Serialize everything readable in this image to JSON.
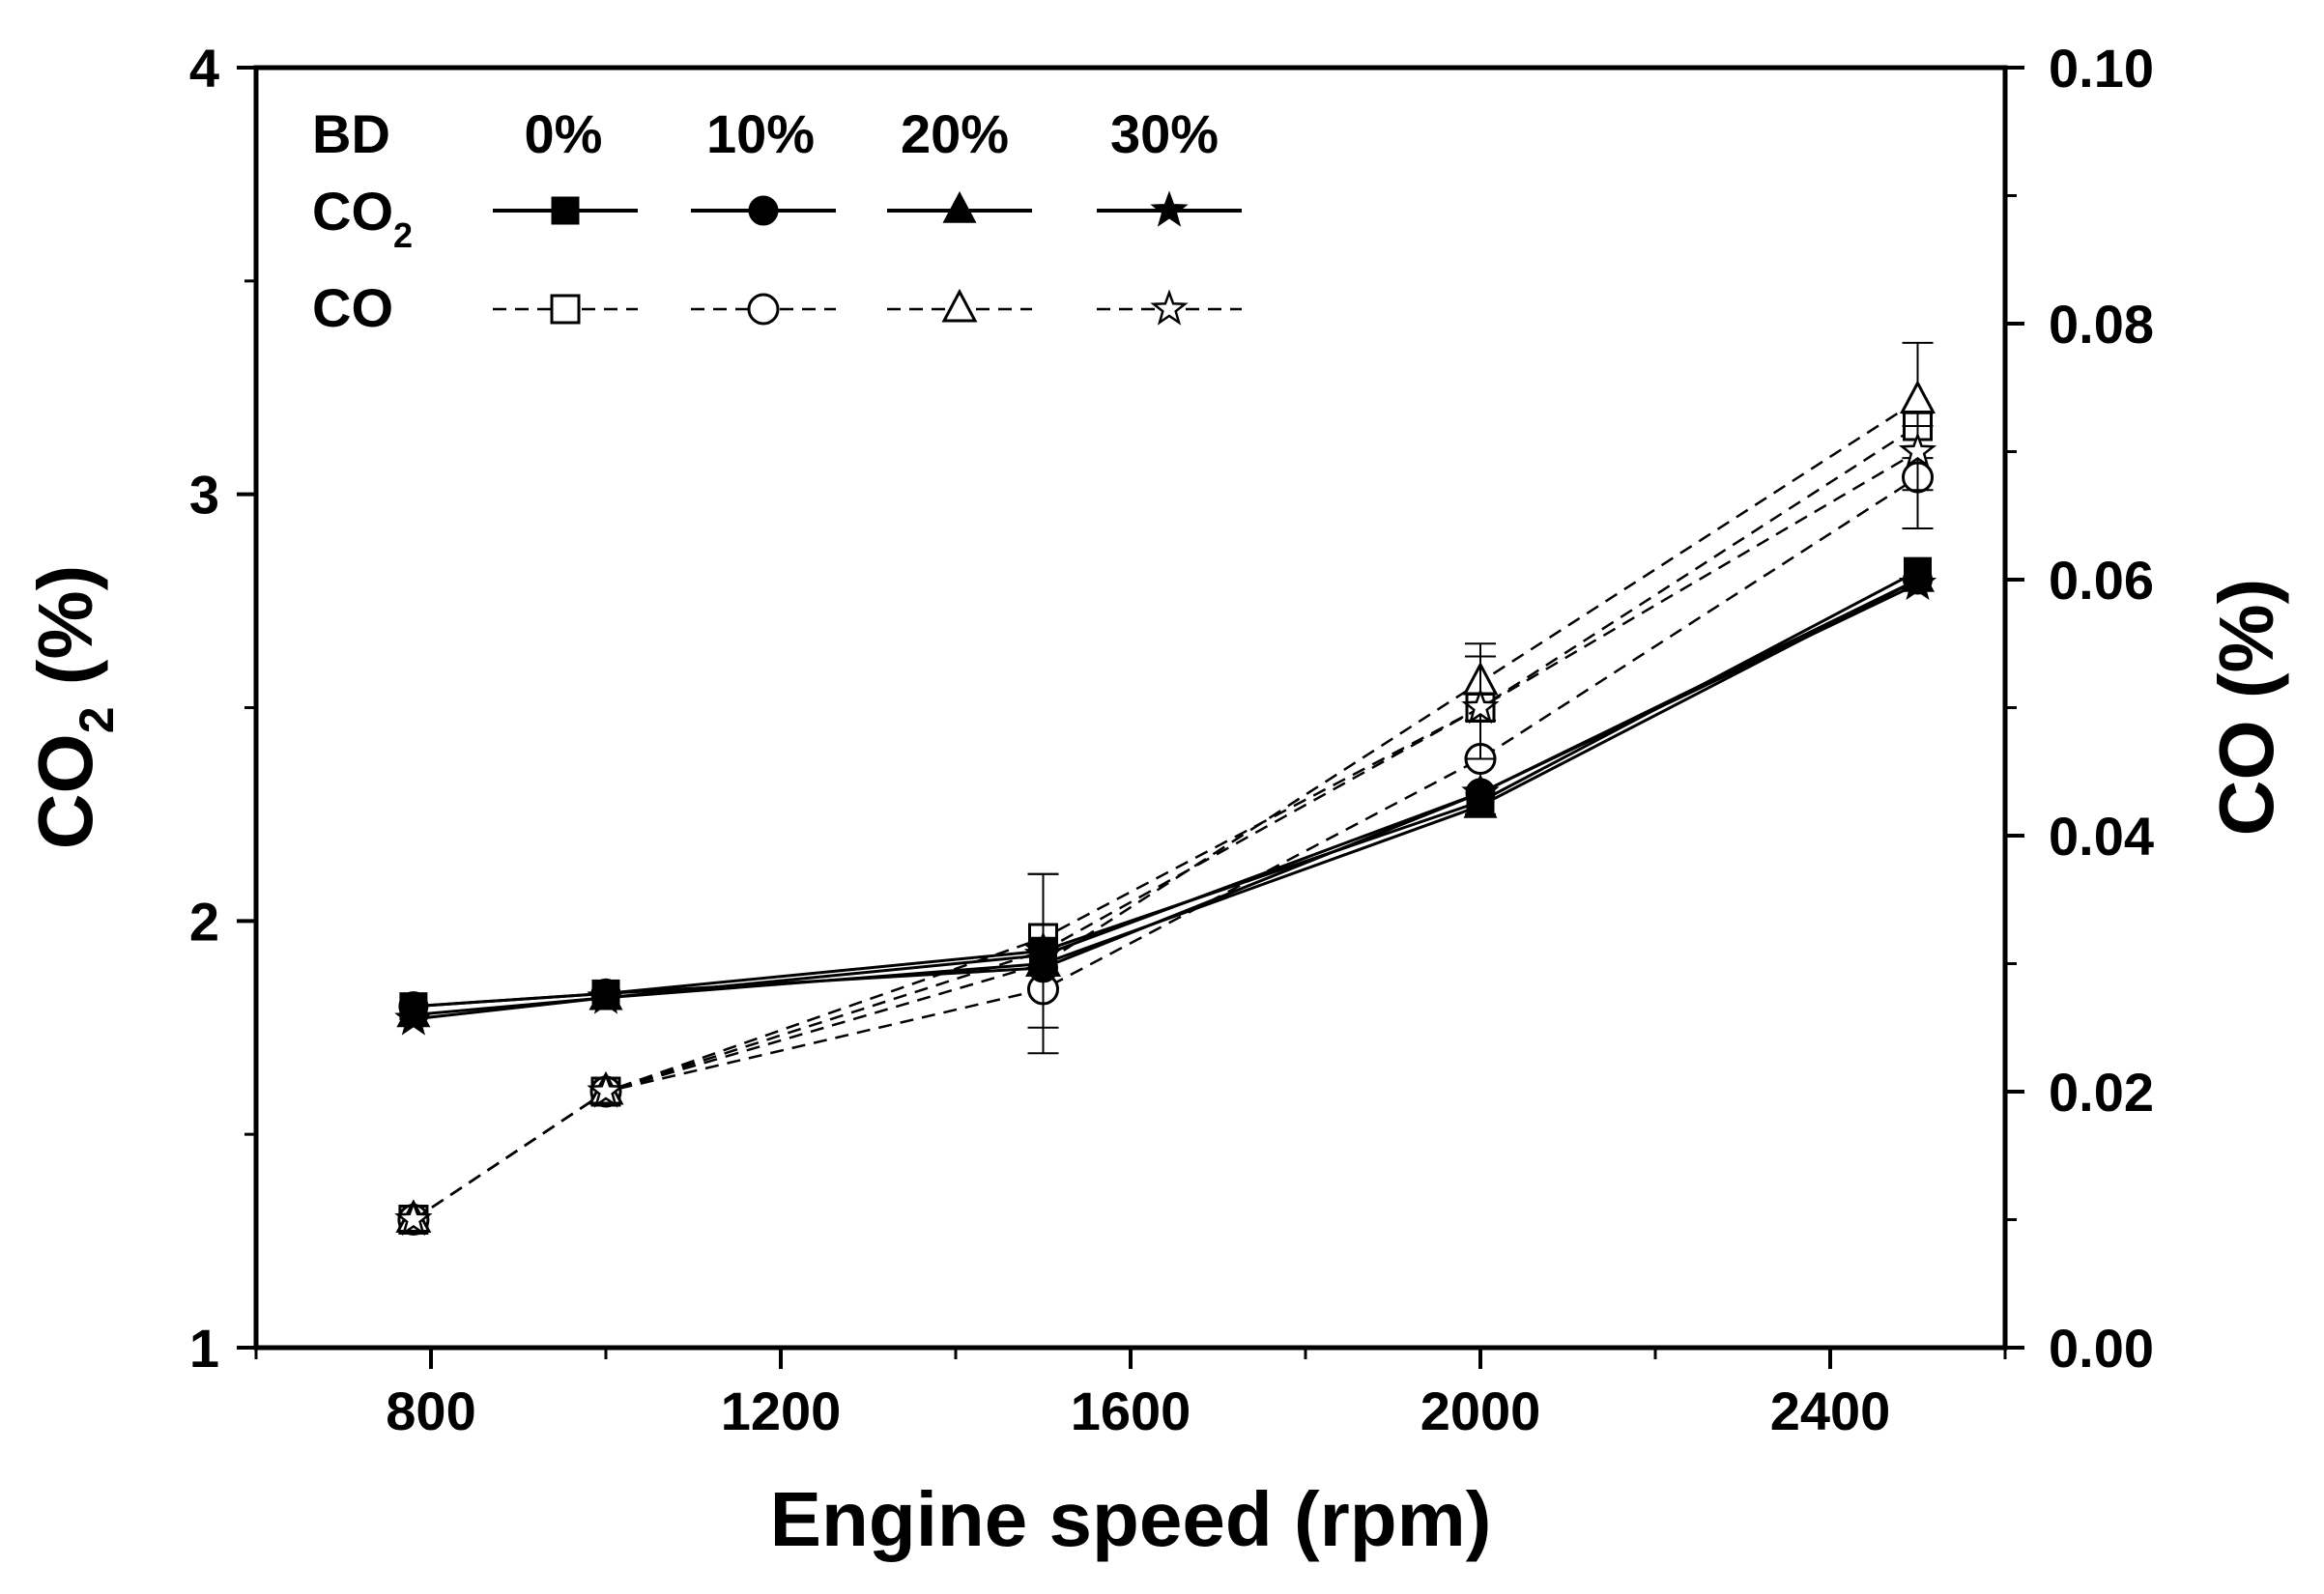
{
  "chart_data": {
    "type": "line",
    "title": "",
    "xlabel": "Engine speed (rpm)",
    "ylabel_left": {
      "main": "CO",
      "sub": "2",
      "suffix": " (%)"
    },
    "ylabel_right": "CO (%)",
    "xlim": [
      600,
      2600
    ],
    "ylim_left": [
      1,
      4
    ],
    "ylim_right": [
      0,
      0.1
    ],
    "x_ticks": [
      800,
      1200,
      1600,
      2000,
      2400
    ],
    "x_tick_labels": [
      "800",
      "1200",
      "1600",
      "2000",
      "2400"
    ],
    "y_left_ticks": [
      1,
      2,
      3,
      4
    ],
    "y_left_tick_labels": [
      "1",
      "2",
      "3",
      "4"
    ],
    "y_right_ticks": [
      0,
      0.02,
      0.04,
      0.06,
      0.08,
      0.1
    ],
    "y_right_tick_labels": [
      "0.00",
      "0.02",
      "0.04",
      "0.06",
      "0.08",
      "0.10"
    ],
    "grid": false,
    "legend": {
      "position": "top-left",
      "header_label": "BD",
      "columns": [
        "0%",
        "10%",
        "20%",
        "30%"
      ],
      "co2_row": {
        "main": "CO",
        "sub": "2"
      },
      "co_row": "CO"
    },
    "x": [
      780,
      1000,
      1500,
      2000,
      2500
    ],
    "series_co2": [
      {
        "name": "CO2 0%",
        "axis": "left",
        "marker": "square",
        "filled": true,
        "values": [
          1.8,
          1.83,
          1.93,
          2.28,
          2.82
        ]
      },
      {
        "name": "CO2 10%",
        "axis": "left",
        "marker": "circle",
        "filled": true,
        "values": [
          1.8,
          1.83,
          1.89,
          2.3,
          2.8
        ]
      },
      {
        "name": "CO2 20%",
        "axis": "left",
        "marker": "triangle",
        "filled": true,
        "values": [
          1.78,
          1.82,
          1.9,
          2.27,
          2.8
        ]
      },
      {
        "name": "CO2 30%",
        "axis": "left",
        "marker": "star",
        "filled": true,
        "values": [
          1.77,
          1.82,
          1.92,
          2.3,
          2.79
        ]
      }
    ],
    "series_co": [
      {
        "name": "CO 0%",
        "axis": "right",
        "marker": "square",
        "filled": false,
        "values": [
          0.01,
          0.02,
          0.032,
          0.05,
          0.072
        ],
        "errors": [
          0,
          0,
          0,
          0,
          0
        ]
      },
      {
        "name": "CO 10%",
        "axis": "right",
        "marker": "circle",
        "filled": false,
        "values": [
          0.01,
          0.02,
          0.028,
          0.046,
          0.068
        ],
        "errors": [
          0,
          0,
          0,
          0,
          0.004
        ]
      },
      {
        "name": "CO 20%",
        "axis": "right",
        "marker": "triangle",
        "filled": false,
        "values": [
          0.01,
          0.02,
          0.03,
          0.052,
          0.074
        ],
        "errors": [
          0,
          0,
          0.007,
          0.003,
          0.0045
        ]
      },
      {
        "name": "CO 30%",
        "axis": "right",
        "marker": "star",
        "filled": false,
        "values": [
          0.01,
          0.02,
          0.031,
          0.05,
          0.07
        ],
        "errors": [
          0,
          0,
          0.006,
          0.004,
          0.003
        ]
      }
    ],
    "co2_errors": [
      0,
      0,
      0,
      0.03,
      0
    ]
  }
}
